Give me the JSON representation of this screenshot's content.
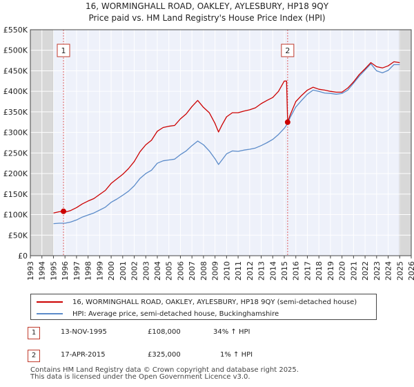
{
  "chart_data": {
    "type": "line",
    "title": "16, WORMINGHALL ROAD, OAKLEY, AYLESBURY, HP18 9QY",
    "subtitle": "Price paid vs. HM Land Registry's House Price Index (HPI)",
    "xlim": [
      1993,
      2026
    ],
    "ylim": [
      0,
      550000
    ],
    "x_ticks": [
      1993,
      1994,
      1995,
      1996,
      1997,
      1998,
      1999,
      2000,
      2001,
      2002,
      2003,
      2004,
      2005,
      2006,
      2007,
      2008,
      2009,
      2010,
      2011,
      2012,
      2013,
      2014,
      2015,
      2016,
      2017,
      2018,
      2019,
      2020,
      2021,
      2022,
      2023,
      2024,
      2025,
      2026
    ],
    "y_ticks": [
      0,
      50000,
      100000,
      150000,
      200000,
      250000,
      300000,
      350000,
      400000,
      450000,
      500000,
      550000
    ],
    "y_tick_labels": [
      "£0",
      "£50K",
      "£100K",
      "£150K",
      "£200K",
      "£250K",
      "£300K",
      "£350K",
      "£400K",
      "£450K",
      "£500K",
      "£550K"
    ],
    "shade_pre": [
      1993,
      1995.0
    ],
    "shade_post": [
      2025.0,
      2026
    ],
    "series": [
      {
        "name": "16, WORMINGHALL ROAD, OAKLEY, AYLESBURY, HP18 9QY (semi-detached house)",
        "color": "#cc0000",
        "x": [
          1995.0,
          1995.5,
          1995.87,
          1996,
          1996.5,
          1997,
          1997.5,
          1998,
          1998.5,
          1999,
          1999.5,
          2000,
          2000.5,
          2001,
          2001.5,
          2002,
          2002.5,
          2003,
          2003.5,
          2004,
          2004.5,
          2005,
          2005.5,
          2006,
          2006.5,
          2007,
          2007.5,
          2008,
          2008.5,
          2009,
          2009.3,
          2009.6,
          2010,
          2010.5,
          2011,
          2011.5,
          2012,
          2012.5,
          2013,
          2013.5,
          2014,
          2014.5,
          2015,
          2015.2,
          2015.29,
          2015.5,
          2016,
          2016.5,
          2017,
          2017.5,
          2018,
          2018.5,
          2019,
          2019.5,
          2020,
          2020.5,
          2021,
          2021.5,
          2022,
          2022.5,
          2023,
          2023.5,
          2024,
          2024.5,
          2025
        ],
        "y": [
          104000,
          107000,
          108000,
          106000,
          110000,
          117000,
          126000,
          133000,
          139000,
          149000,
          159000,
          176000,
          187000,
          198000,
          212000,
          229000,
          253000,
          270000,
          281000,
          303000,
          312000,
          315000,
          317000,
          333000,
          345000,
          363000,
          378000,
          361000,
          348000,
          322000,
          301000,
          318000,
          338000,
          348000,
          348000,
          352000,
          355000,
          360000,
          370000,
          378000,
          385000,
          400000,
          425000,
          425000,
          325000,
          342000,
          375000,
          390000,
          403000,
          410000,
          405000,
          403000,
          400000,
          398000,
          398000,
          408000,
          423000,
          441000,
          455000,
          470000,
          460000,
          457000,
          462000,
          472000,
          470000
        ]
      },
      {
        "name": "HPI: Average price, semi-detached house, Buckinghamshire",
        "color": "#5b8bc9",
        "x": [
          1995.0,
          1995.5,
          1996,
          1996.5,
          1997,
          1997.5,
          1998,
          1998.5,
          1999,
          1999.5,
          2000,
          2000.5,
          2001,
          2001.5,
          2002,
          2002.5,
          2003,
          2003.5,
          2004,
          2004.5,
          2005,
          2005.5,
          2006,
          2006.5,
          2007,
          2007.5,
          2008,
          2008.5,
          2009,
          2009.3,
          2009.6,
          2010,
          2010.5,
          2011,
          2011.5,
          2012,
          2012.5,
          2013,
          2013.5,
          2014,
          2014.5,
          2015,
          2015.29,
          2015.5,
          2016,
          2016.5,
          2017,
          2017.5,
          2018,
          2018.5,
          2019,
          2019.5,
          2020,
          2020.5,
          2021,
          2021.5,
          2022,
          2022.5,
          2023,
          2023.5,
          2024,
          2024.5,
          2025
        ],
        "y": [
          78000,
          79000,
          79000,
          82000,
          87000,
          94000,
          99000,
          104000,
          111000,
          118000,
          130000,
          138000,
          147000,
          157000,
          170000,
          188000,
          200000,
          208000,
          225000,
          231000,
          233000,
          235000,
          246000,
          255000,
          268000,
          279000,
          270000,
          255000,
          236000,
          222000,
          233000,
          248000,
          255000,
          254000,
          257000,
          259000,
          262000,
          268000,
          275000,
          283000,
          295000,
          310000,
          322000,
          336000,
          362000,
          378000,
          393000,
          403000,
          400000,
          396000,
          395000,
          393000,
          395000,
          403000,
          420000,
          437000,
          452000,
          467000,
          450000,
          445000,
          451000,
          465000,
          465000
        ]
      }
    ],
    "sale_markers": [
      {
        "x": 1995.87,
        "y": 108000,
        "label": "1"
      },
      {
        "x": 2015.29,
        "y": 325000,
        "label": "2"
      }
    ]
  },
  "legend": {
    "red_label": "16, WORMINGHALL ROAD, OAKLEY, AYLESBURY, HP18 9QY (semi-detached house)",
    "blue_label": "HPI: Average price, semi-detached house, Buckinghamshire"
  },
  "sales": [
    {
      "num": "1",
      "date": "13-NOV-1995",
      "price": "£108,000",
      "hpi": "34% ↑ HPI"
    },
    {
      "num": "2",
      "date": "17-APR-2015",
      "price": "£325,000",
      "hpi": "1% ↑ HPI"
    }
  ],
  "footer": {
    "line1": "Contains HM Land Registry data © Crown copyright and database right 2025.",
    "line2": "This data is licensed under the Open Government Licence v3.0."
  },
  "colors": {
    "price_line": "#cc0000",
    "hpi_line": "#5b8bc9",
    "marker_border": "#c0392b"
  }
}
